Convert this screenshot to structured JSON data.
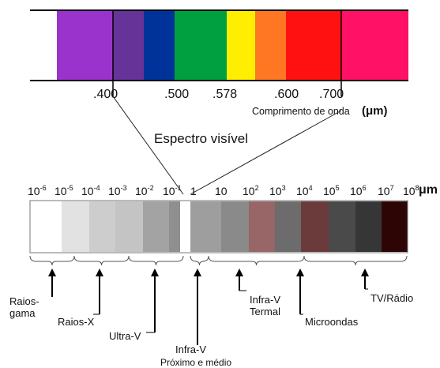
{
  "visible": {
    "bands": [
      {
        "color": "#9933cc"
      },
      {
        "color": "#663399"
      },
      {
        "color": "#003399"
      },
      {
        "color": "#00a040"
      },
      {
        "color": "#ffee00"
      },
      {
        "color": "#ff7722"
      },
      {
        "color": "#ff1111"
      },
      {
        "color": "#ff1166"
      }
    ],
    "ticks": [
      ".400",
      ".500",
      ".578",
      ".600",
      ".700"
    ],
    "wavelength_label": "Comprimento de onda",
    "wavelength_unit": "(μm)",
    "title": "Espectro visível"
  },
  "spectrum": {
    "exponents": [
      "-6",
      "-5",
      "-4",
      "-3",
      "-2",
      "-1",
      "",
      "",
      "2",
      "3",
      "4",
      "5",
      "6",
      "7",
      "8"
    ],
    "mantissas": [
      "10",
      "10",
      "10",
      "10",
      "10",
      "10",
      "1",
      "10",
      "10",
      "10",
      "10",
      "10",
      "10",
      "10",
      "10"
    ],
    "unit": "μm",
    "cells": [
      {
        "color": "#ffffff"
      },
      {
        "color": "#e2e2e2"
      },
      {
        "color": "#cdcdcd"
      },
      {
        "color": "#c4c4c4"
      },
      {
        "color": "#a3a3a3"
      },
      {
        "color": "#8f8f8f"
      },
      {
        "color": "#ffffff"
      },
      {
        "color": "#9e9e9e"
      },
      {
        "color": "#8a8a8a"
      },
      {
        "color": "#986666"
      },
      {
        "color": "#6c6c6c"
      },
      {
        "color": "#6b3a3a"
      },
      {
        "color": "#4a4a4a"
      },
      {
        "color": "#363636"
      },
      {
        "color": "#2e0505"
      }
    ],
    "regions": [
      {
        "label_lines": [
          "Raios-",
          "gama"
        ]
      },
      {
        "label_lines": [
          "Raios-X"
        ]
      },
      {
        "label_lines": [
          "Ultra-V"
        ]
      },
      {
        "label_lines": [
          "Infra-V",
          "Próximo e médio"
        ]
      },
      {
        "label_lines": [
          "Infra-V",
          "Termal"
        ]
      },
      {
        "label_lines": [
          "Microondas"
        ]
      },
      {
        "label_lines": [
          "TV/Rádio"
        ]
      }
    ]
  }
}
